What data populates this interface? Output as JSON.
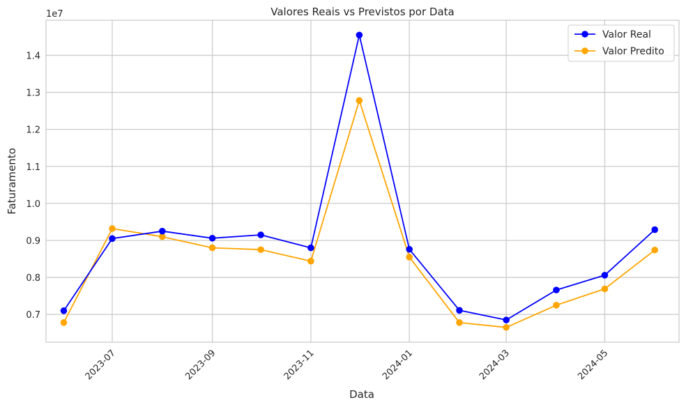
{
  "chart_data": {
    "type": "line",
    "title": "Valores Reais vs Previstos por Data",
    "xlabel": "Data",
    "ylabel": "Faturamento",
    "y_offset_label": "1e7",
    "y_scale": 10000000,
    "x": [
      "2023-06",
      "2023-07",
      "2023-08",
      "2023-09",
      "2023-10",
      "2023-11",
      "2023-12",
      "2024-01",
      "2024-02",
      "2024-03",
      "2024-04",
      "2024-05",
      "2024-06"
    ],
    "xlim": [
      "2023-05-21",
      "2024-06-16"
    ],
    "x_ticks": [
      {
        "date": "2023-07",
        "label": "2023-07"
      },
      {
        "date": "2023-09",
        "label": "2023-09"
      },
      {
        "date": "2023-11",
        "label": "2023-11"
      },
      {
        "date": "2024-01",
        "label": "2024-01"
      },
      {
        "date": "2024-03",
        "label": "2024-03"
      },
      {
        "date": "2024-05",
        "label": "2024-05"
      }
    ],
    "ylim": [
      6.25,
      14.95
    ],
    "y_ticks": [
      {
        "value": 7,
        "label": "0.7"
      },
      {
        "value": 8,
        "label": "0.8"
      },
      {
        "value": 9,
        "label": "0.9"
      },
      {
        "value": 10,
        "label": "1.0"
      },
      {
        "value": 11,
        "label": "1.1"
      },
      {
        "value": 12,
        "label": "1.2"
      },
      {
        "value": 13,
        "label": "1.3"
      },
      {
        "value": 14,
        "label": "1.4"
      }
    ],
    "series": [
      {
        "name": "Valor Real",
        "color": "#0000ff",
        "values": [
          7.1,
          9.05,
          9.25,
          9.06,
          9.15,
          8.8,
          14.55,
          8.76,
          7.11,
          6.85,
          7.66,
          8.06,
          9.29
        ]
      },
      {
        "name": "Valor Predito",
        "color": "#ffa500",
        "values": [
          6.78,
          9.32,
          9.1,
          8.8,
          8.75,
          8.44,
          12.78,
          8.55,
          6.78,
          6.65,
          7.25,
          7.69,
          8.74
        ]
      }
    ],
    "grid": true,
    "legend_position": "top-right"
  }
}
